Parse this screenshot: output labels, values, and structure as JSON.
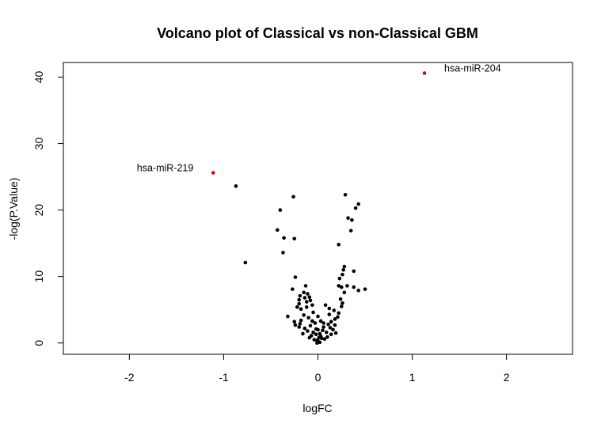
{
  "chart_data": {
    "type": "scatter",
    "title": "Volcano plot of Classical vs non-Classical GBM",
    "xlabel": "logFC",
    "ylabel": "-log(P.Value)",
    "xlim": [
      -2.7,
      2.7
    ],
    "ylim": [
      -1.7,
      42.2
    ],
    "xticks": [
      -2,
      -1,
      0,
      1,
      2
    ],
    "xtick_labels": [
      "-2",
      "-1",
      "0",
      "1",
      "2"
    ],
    "yticks": [
      0,
      10,
      20,
      30,
      40
    ],
    "ytick_labels": [
      "0",
      "10",
      "20",
      "30",
      "40"
    ],
    "grid": false,
    "colors": {
      "points": "#000000",
      "highlight": "#e00000"
    },
    "series": [
      {
        "points": [
          [
            -0.87,
            23.6
          ],
          [
            -0.77,
            12.1
          ],
          [
            -0.4,
            20.0
          ],
          [
            -0.36,
            15.8
          ],
          [
            -0.37,
            13.6
          ],
          [
            -0.43,
            17.0
          ],
          [
            -0.26,
            22.0
          ],
          [
            -0.25,
            15.7
          ],
          [
            0.29,
            22.3
          ],
          [
            0.43,
            20.9
          ],
          [
            0.4,
            20.3
          ],
          [
            0.32,
            18.8
          ],
          [
            0.36,
            18.5
          ],
          [
            0.35,
            16.9
          ],
          [
            0.22,
            14.8
          ],
          [
            0.28,
            11.5
          ],
          [
            0.27,
            11.0
          ],
          [
            0.26,
            10.3
          ],
          [
            0.38,
            10.8
          ],
          [
            0.23,
            9.7
          ],
          [
            0.22,
            8.6
          ],
          [
            0.25,
            8.4
          ],
          [
            0.31,
            8.6
          ],
          [
            0.38,
            8.4
          ],
          [
            0.43,
            7.9
          ],
          [
            0.5,
            8.1
          ],
          [
            -0.24,
            9.9
          ],
          [
            -0.27,
            8.1
          ],
          [
            -0.13,
            8.6
          ],
          [
            -0.15,
            7.6
          ],
          [
            -0.19,
            7.1
          ],
          [
            -0.11,
            7.4
          ],
          [
            -0.2,
            6.5
          ],
          [
            -0.14,
            6.8
          ],
          [
            -0.09,
            6.9
          ],
          [
            -0.2,
            5.9
          ],
          [
            -0.12,
            6.2
          ],
          [
            -0.08,
            6.4
          ],
          [
            -0.18,
            5.1
          ],
          [
            -0.12,
            5.4
          ],
          [
            -0.06,
            5.7
          ],
          [
            -0.22,
            5.4
          ],
          [
            -0.32,
            4.0
          ],
          [
            -0.25,
            3.2
          ],
          [
            -0.18,
            3.4
          ],
          [
            -0.1,
            3.8
          ],
          [
            -0.05,
            4.6
          ],
          [
            0.0,
            4.0
          ],
          [
            0.03,
            3.3
          ],
          [
            0.08,
            5.7
          ],
          [
            0.12,
            5.2
          ],
          [
            0.17,
            4.9
          ],
          [
            0.22,
            4.5
          ],
          [
            0.21,
            3.9
          ],
          [
            0.25,
            5.5
          ],
          [
            0.26,
            6.0
          ],
          [
            0.24,
            6.6
          ],
          [
            0.28,
            7.6
          ],
          [
            0.14,
            3.2
          ],
          [
            0.18,
            3.6
          ],
          [
            0.11,
            2.8
          ],
          [
            0.06,
            2.4
          ],
          [
            -0.03,
            3.0
          ],
          [
            -0.08,
            2.6
          ],
          [
            -0.14,
            2.2
          ],
          [
            -0.19,
            2.9
          ],
          [
            -0.24,
            2.7
          ],
          [
            -0.11,
            1.8
          ],
          [
            -0.05,
            1.6
          ],
          [
            -0.02,
            2.1
          ],
          [
            0.02,
            1.4
          ],
          [
            0.05,
            1.9
          ],
          [
            0.09,
            1.6
          ],
          [
            0.13,
            2.3
          ],
          [
            0.16,
            2.0
          ],
          [
            0.19,
            1.5
          ],
          [
            0.1,
            0.9
          ],
          [
            0.04,
            0.7
          ],
          [
            0.0,
            0.3
          ],
          [
            -0.01,
            0.0
          ],
          [
            -0.04,
            0.5
          ],
          [
            -0.07,
            1.1
          ],
          [
            0.03,
            1.0
          ],
          [
            0.07,
            0.6
          ],
          [
            -0.09,
            0.8
          ],
          [
            0.01,
            0.8
          ],
          [
            -0.02,
            1.3
          ],
          [
            0.14,
            1.3
          ],
          [
            -0.16,
            1.4
          ],
          [
            0.06,
            3.0
          ],
          [
            -0.06,
            3.3
          ],
          [
            0.12,
            4.3
          ],
          [
            -0.15,
            4.2
          ],
          [
            -0.2,
            2.4
          ],
          [
            0.18,
            2.7
          ],
          [
            0.0,
            2.0
          ],
          [
            -0.01,
            0.4
          ],
          [
            0.02,
            0.1
          ]
        ]
      },
      {
        "highlight": true,
        "points": [
          {
            "x": 1.13,
            "y": 40.6,
            "label": "hsa-miR-204"
          },
          {
            "x": -1.11,
            "y": 25.6,
            "label": "hsa-miR-219"
          }
        ]
      }
    ]
  }
}
